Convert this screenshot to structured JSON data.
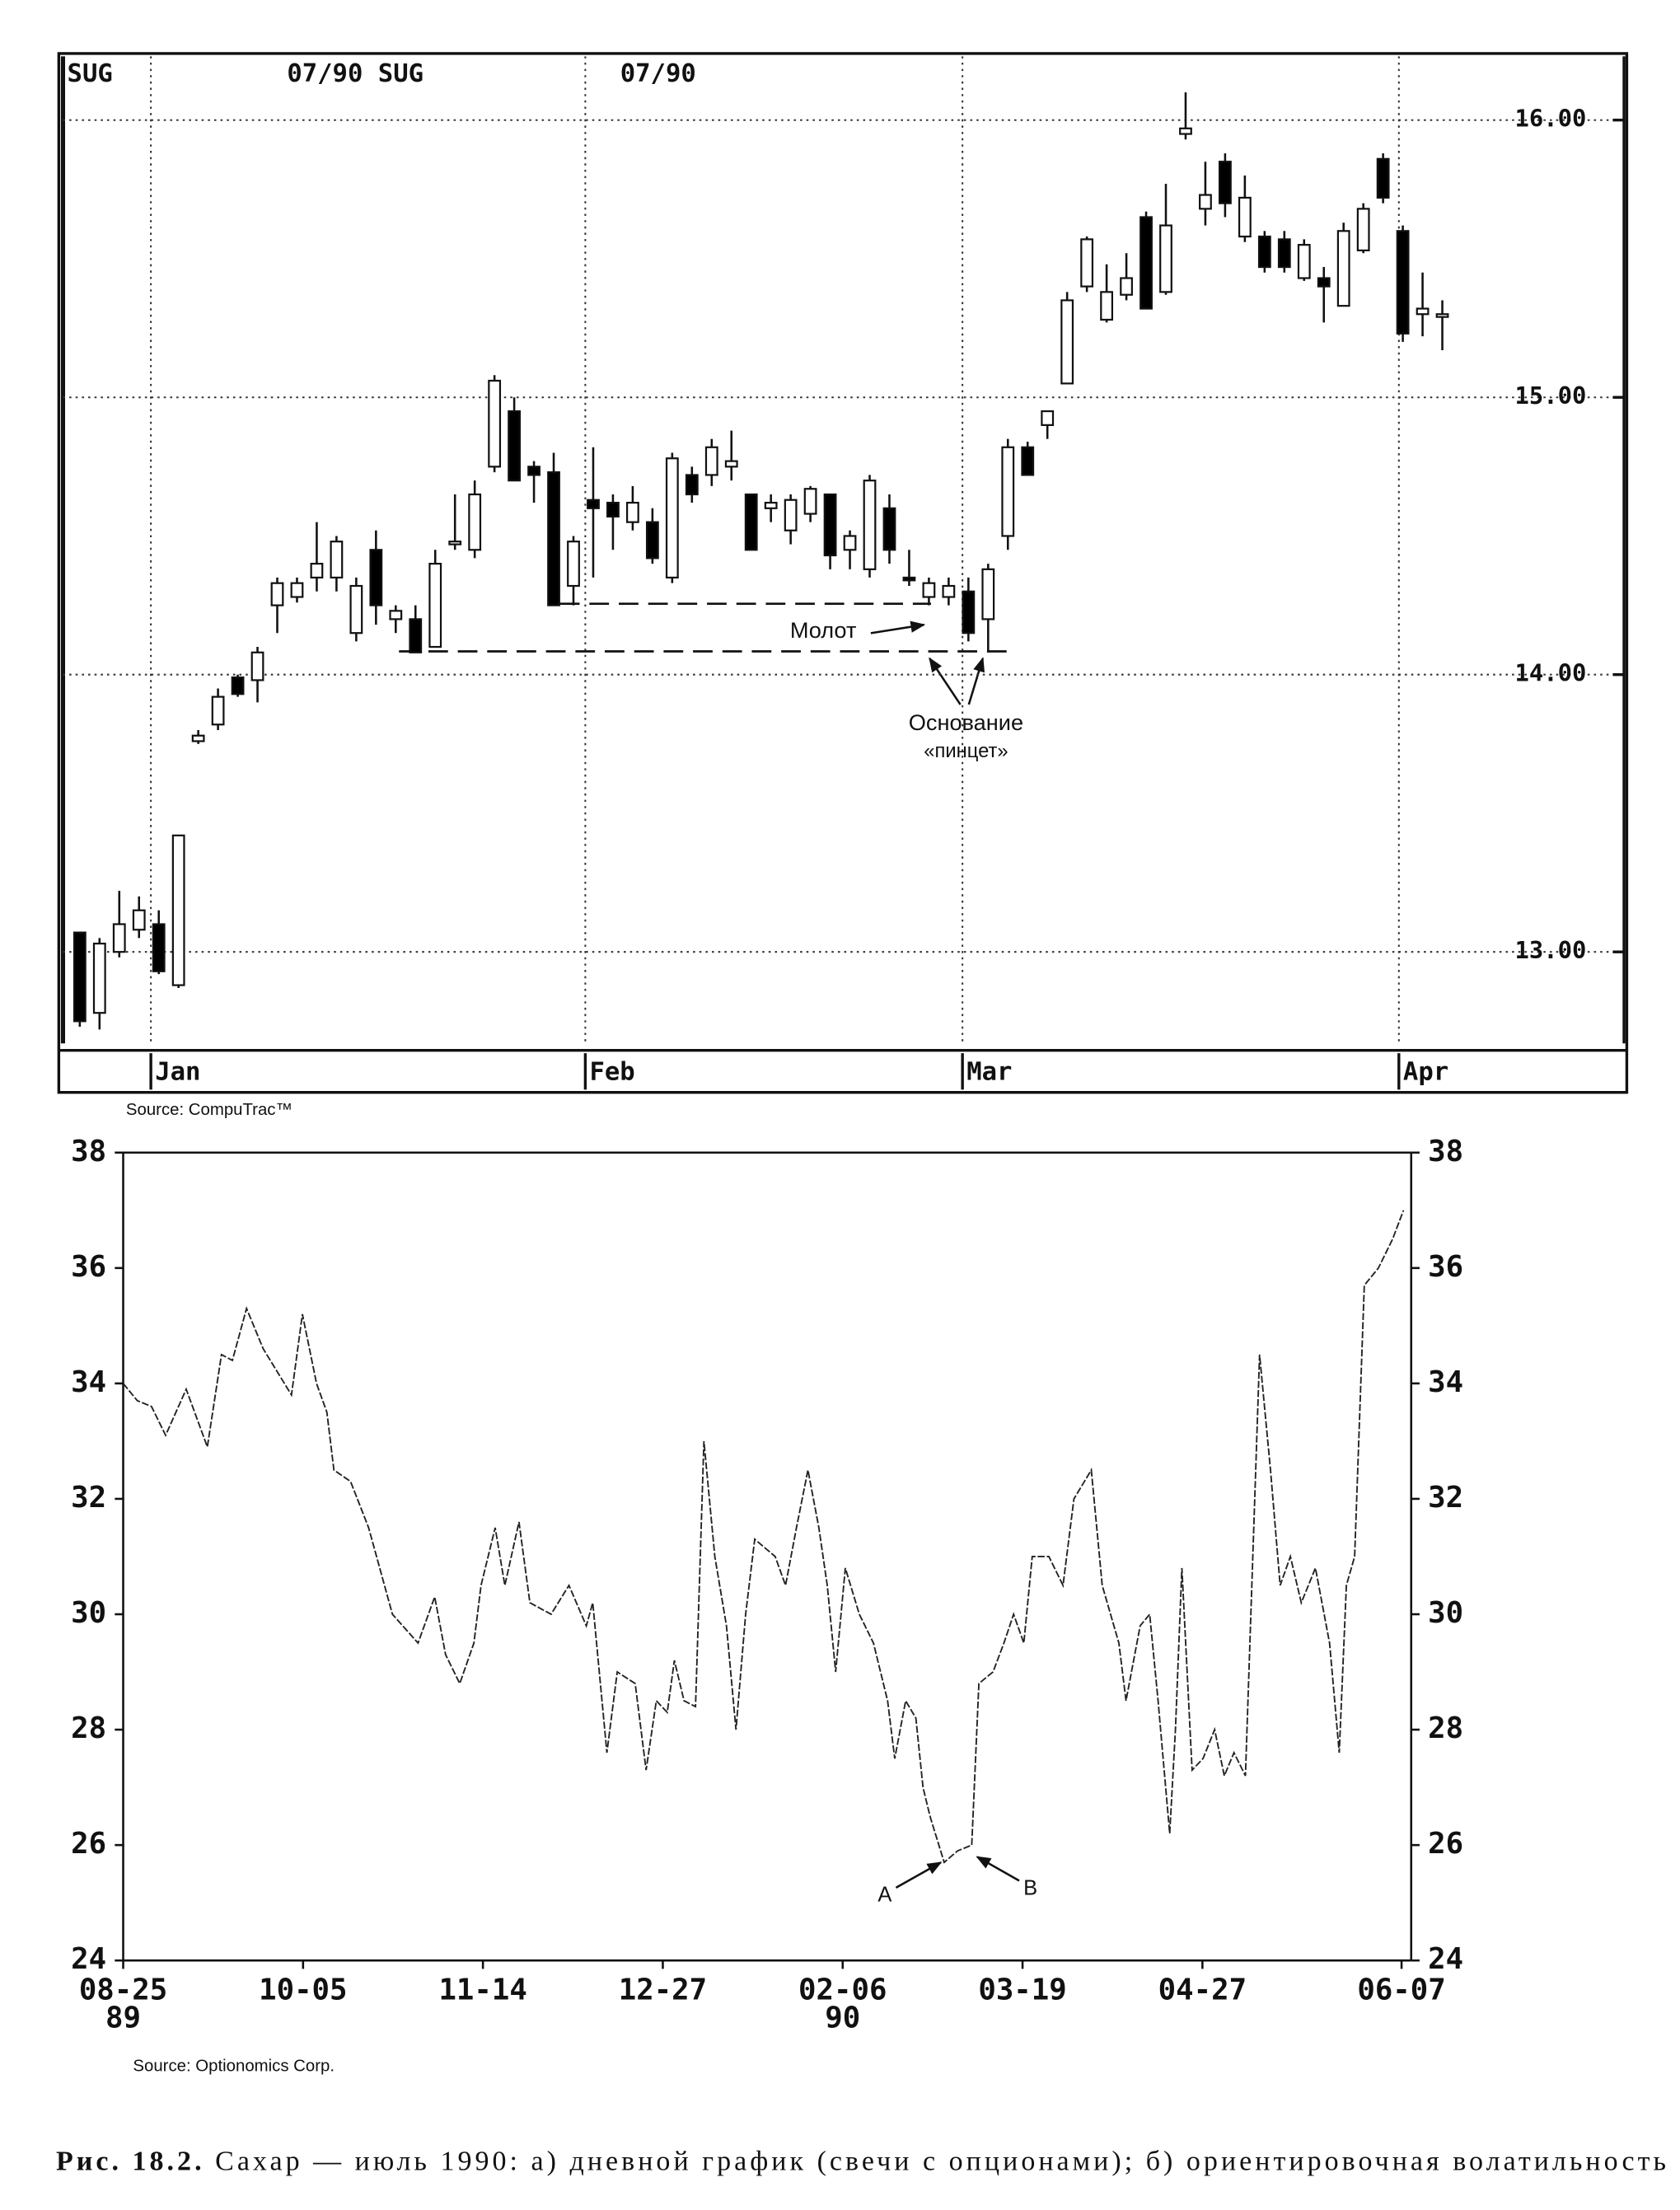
{
  "chart_data": [
    {
      "type": "candlestick",
      "header": [
        "SUG",
        "07/90 SUG",
        "07/90"
      ],
      "source": "Source:  CompuTrac™",
      "annotations": [
        "Молот",
        "Основание",
        "«пинцет»"
      ],
      "x": [
        0,
        1,
        2,
        3,
        4,
        5,
        6,
        7,
        8,
        9,
        10,
        11,
        12,
        13,
        14,
        15,
        16,
        17,
        18,
        19,
        20,
        21,
        22,
        23,
        24,
        25,
        26,
        27,
        28,
        29,
        30,
        31,
        32,
        33,
        34,
        35,
        36,
        37,
        38,
        39,
        40,
        41,
        42,
        43,
        44,
        45,
        46,
        47,
        48,
        49,
        50,
        51,
        52,
        53,
        54,
        55,
        56,
        57,
        58,
        59,
        60,
        61,
        62,
        63,
        64,
        65,
        66,
        67,
        68,
        69
      ],
      "open": [
        13.07,
        12.78,
        13.0,
        13.08,
        13.1,
        12.88,
        13.76,
        13.82,
        13.99,
        13.98,
        14.25,
        14.28,
        14.35,
        14.35,
        14.15,
        14.45,
        14.2,
        14.2,
        14.1,
        14.47,
        14.45,
        14.75,
        14.95,
        14.75,
        14.73,
        14.32,
        14.63,
        14.62,
        14.55,
        14.55,
        14.35,
        14.72,
        14.72,
        14.75,
        14.65,
        14.6,
        14.52,
        14.58,
        14.65,
        14.45,
        14.38,
        14.6,
        14.35,
        14.28,
        14.28,
        14.3,
        14.2,
        14.5,
        14.82,
        14.9,
        15.05,
        15.4,
        15.28,
        15.37,
        15.65,
        15.38,
        15.95,
        15.68,
        15.85,
        15.58,
        15.58,
        15.57,
        15.43,
        15.43,
        15.33,
        15.53,
        15.86,
        15.6,
        15.3,
        15.29
      ],
      "high": [
        13.07,
        13.05,
        13.22,
        13.2,
        13.15,
        13.42,
        13.8,
        13.95,
        14.0,
        14.1,
        14.35,
        14.35,
        14.55,
        14.5,
        14.35,
        14.52,
        14.25,
        14.25,
        14.45,
        14.65,
        14.7,
        15.08,
        15.0,
        14.77,
        14.8,
        14.5,
        14.82,
        14.65,
        14.68,
        14.6,
        14.8,
        14.75,
        14.85,
        14.88,
        14.65,
        14.65,
        14.65,
        14.68,
        14.65,
        14.52,
        14.72,
        14.65,
        14.45,
        14.35,
        14.35,
        14.35,
        14.4,
        14.85,
        14.84,
        14.95,
        15.38,
        15.58,
        15.48,
        15.52,
        15.67,
        15.77,
        16.1,
        15.85,
        15.88,
        15.8,
        15.6,
        15.6,
        15.57,
        15.47,
        15.63,
        15.7,
        15.88,
        15.62,
        15.45,
        15.35
      ],
      "low": [
        12.73,
        12.72,
        12.98,
        13.05,
        12.92,
        12.87,
        13.75,
        13.8,
        13.92,
        13.9,
        14.15,
        14.26,
        14.3,
        14.3,
        14.12,
        14.18,
        14.15,
        14.08,
        14.1,
        14.45,
        14.42,
        14.73,
        14.7,
        14.62,
        14.25,
        14.25,
        14.35,
        14.45,
        14.52,
        14.4,
        14.33,
        14.62,
        14.68,
        14.7,
        14.45,
        14.55,
        14.47,
        14.55,
        14.38,
        14.38,
        14.35,
        14.4,
        14.32,
        14.25,
        14.25,
        14.12,
        14.08,
        14.45,
        14.72,
        14.85,
        15.05,
        15.38,
        15.27,
        15.35,
        15.32,
        15.37,
        15.93,
        15.62,
        15.65,
        15.56,
        15.45,
        15.45,
        15.42,
        15.27,
        15.33,
        15.52,
        15.7,
        15.2,
        15.22,
        15.17
      ],
      "close": [
        12.75,
        13.03,
        13.1,
        13.15,
        12.93,
        13.42,
        13.78,
        13.92,
        13.93,
        14.08,
        14.33,
        14.33,
        14.4,
        14.48,
        14.32,
        14.25,
        14.23,
        14.08,
        14.4,
        14.48,
        14.65,
        15.06,
        14.7,
        14.72,
        14.25,
        14.48,
        14.6,
        14.57,
        14.62,
        14.42,
        14.78,
        14.65,
        14.82,
        14.77,
        14.45,
        14.62,
        14.63,
        14.67,
        14.43,
        14.5,
        14.7,
        14.45,
        14.34,
        14.33,
        14.32,
        14.15,
        14.38,
        14.82,
        14.72,
        14.95,
        15.35,
        15.57,
        15.38,
        15.43,
        15.32,
        15.62,
        15.97,
        15.73,
        15.7,
        15.72,
        15.47,
        15.47,
        15.55,
        15.4,
        15.6,
        15.68,
        15.72,
        15.23,
        15.32,
        15.3
      ],
      "up_color": "#ffffff",
      "down_color": "#000000",
      "xlim": [
        -0.85,
        78.2
      ],
      "xticks": [
        {
          "value": 3.6,
          "label": "Jan"
        },
        {
          "value": 25.6,
          "label": "Feb"
        },
        {
          "value": 44.7,
          "label": "Mar"
        },
        {
          "value": 66.8,
          "label": "Apr"
        }
      ],
      "ylim": [
        12.67,
        16.23
      ],
      "yticks": [
        {
          "value": 13,
          "label": "13.00"
        },
        {
          "value": 14,
          "label": "14.00"
        },
        {
          "value": 15,
          "label": "15.00"
        },
        {
          "value": 16,
          "label": "16.00"
        }
      ],
      "grid": true
    },
    {
      "type": "line",
      "source": "Source:  Optionomics Corp.",
      "annotations": [
        "A",
        "B"
      ],
      "color": "#222222",
      "x": [
        0,
        2.2,
        4.4,
        6.6,
        9.8,
        13.1,
        15.3,
        17,
        19.2,
        21.8,
        24,
        26.2,
        27.9,
        30.1,
        31.7,
        32.8,
        35.4,
        38.2,
        41.9,
        45.9,
        48.5,
        50.2,
        52.4,
        54.6,
        55.7,
        57.9,
        59.4,
        61.6,
        63.3,
        66.6,
        69.4,
        72.1,
        73.1,
        75.3,
        76.9,
        79.7,
        81.4,
        83,
        84.7,
        85.8,
        87.3,
        89.1,
        90.4,
        92.1,
        93.9,
        95.4,
        96.9,
        98.3,
        101.5,
        103.1,
        104.8,
        106.6,
        108.3,
        109.6,
        110.9,
        112.4,
        114.6,
        116.8,
        119,
        120.1,
        121.8,
        123.4,
        124.5,
        125.6,
        127.8,
        129.9,
        132.1,
        133.2,
        135.4,
        137.1,
        138.6,
        140.2,
        141.5,
        144.1,
        146.3,
        148,
        150.7,
        152.4,
        155,
        156.1,
        158.3,
        159.8,
        161.1,
        162.9,
        163.8,
        164.8,
        166.4,
        168.1,
        169.9,
        171.4,
        172.9,
        174.7,
        176.9,
        178.6,
        180.1,
        181.7,
        183.4,
        185.6,
        187.8,
        189.3,
        190.4,
        191.7,
        193.2,
        195.4,
        197.6,
        199.3
      ],
      "values": [
        34.0,
        33.7,
        33.6,
        33.1,
        33.9,
        32.9,
        34.5,
        34.4,
        35.3,
        34.6,
        34.2,
        33.8,
        35.2,
        34.0,
        33.5,
        32.5,
        32.3,
        31.5,
        30.0,
        29.5,
        30.3,
        29.3,
        28.8,
        29.5,
        30.5,
        31.5,
        30.5,
        31.6,
        30.2,
        30.0,
        30.5,
        29.8,
        30.2,
        27.6,
        29.0,
        28.8,
        27.3,
        28.5,
        28.3,
        29.2,
        28.5,
        28.4,
        33.0,
        31.0,
        29.8,
        28.0,
        30.0,
        31.3,
        31.0,
        30.5,
        31.5,
        32.5,
        31.5,
        30.5,
        29.0,
        30.8,
        30.0,
        29.5,
        28.5,
        27.5,
        28.5,
        28.2,
        27.0,
        26.5,
        25.7,
        25.9,
        26.0,
        28.8,
        29.0,
        29.5,
        30.0,
        29.5,
        31.0,
        31.0,
        30.5,
        32.0,
        32.5,
        30.5,
        29.5,
        28.5,
        29.8,
        30.0,
        28.5,
        26.2,
        28.0,
        30.8,
        27.3,
        27.5,
        28.0,
        27.2,
        27.6,
        27.2,
        34.5,
        32.5,
        30.5,
        31.0,
        30.2,
        30.8,
        29.5,
        27.6,
        30.5,
        31.0,
        35.7,
        36.0,
        36.5,
        37.0
      ],
      "xlim": [
        0,
        200.5
      ],
      "xticks": [
        {
          "value": 0,
          "label": "08-25",
          "sublabel": "89"
        },
        {
          "value": 28,
          "label": "10-05"
        },
        {
          "value": 56,
          "label": "11-14"
        },
        {
          "value": 84,
          "label": "12-27"
        },
        {
          "value": 112,
          "label": "02-06",
          "sublabel": "90"
        },
        {
          "value": 140,
          "label": "03-19"
        },
        {
          "value": 168,
          "label": "04-27"
        },
        {
          "value": 199,
          "label": "06-07"
        }
      ],
      "ylim": [
        24,
        38
      ],
      "yticks": [
        24,
        26,
        28,
        30,
        32,
        34,
        36,
        38
      ]
    }
  ],
  "caption": {
    "label": "Рис. 18.2.",
    "text": "Сахар — июль 1990: а) дневной график (свечи с опционами); б) ориентировочная волатильность"
  }
}
